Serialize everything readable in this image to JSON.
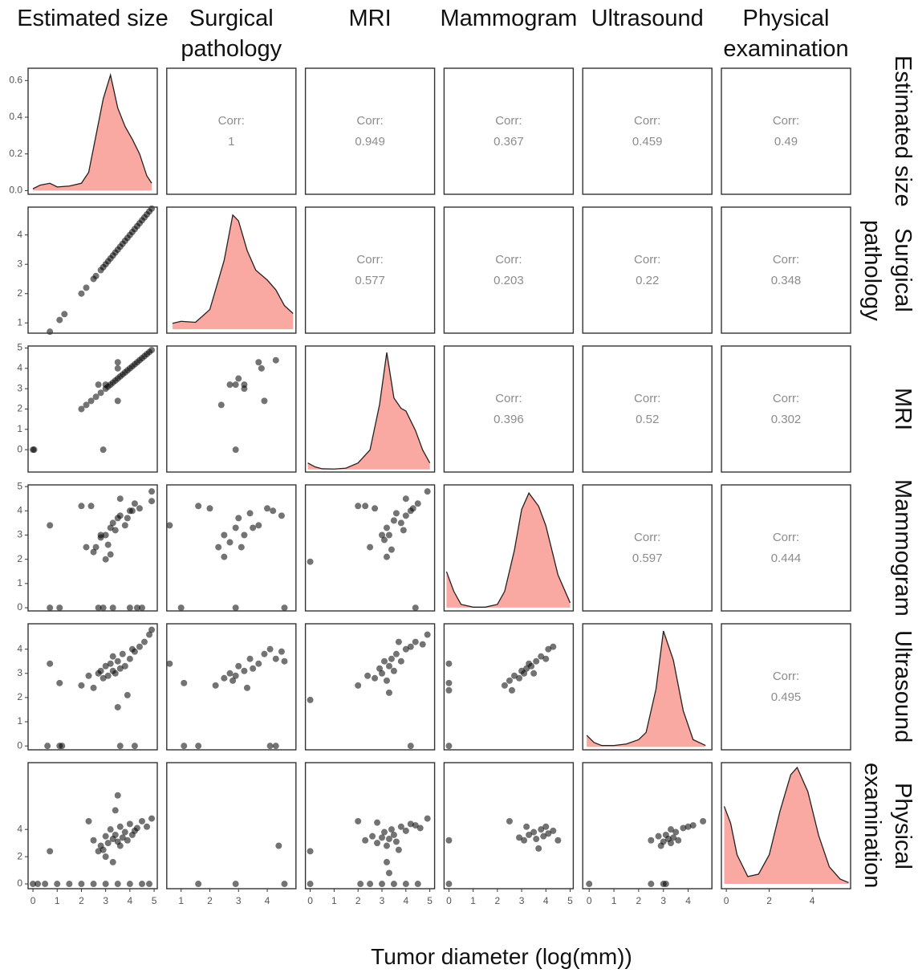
{
  "variables": [
    "Estimated size",
    "Surgical pathology",
    "MRI",
    "Mammogram",
    "Ultrasound",
    "Physical examination"
  ],
  "x_label": "Tumor diameter (log(mm))",
  "chart_data": [
    {
      "type": "density",
      "color": "#f9a8a2",
      "x": [
        0,
        0.3,
        0.7,
        1.0,
        1.5,
        2.0,
        2.3,
        2.6,
        2.9,
        3.2,
        3.5,
        3.8,
        4.1,
        4.4,
        4.7,
        4.9
      ],
      "y": [
        0.01,
        0.03,
        0.04,
        0.02,
        0.025,
        0.04,
        0.1,
        0.3,
        0.5,
        0.63,
        0.45,
        0.35,
        0.28,
        0.2,
        0.08,
        0.04
      ],
      "xlim": [
        -0.2,
        5.13
      ],
      "ylim": [
        -0.02,
        0.667
      ],
      "yticks": [
        {
          "value": 0,
          "label": "0.0"
        },
        0.2,
        0.4,
        0.6
      ]
    },
    {
      "type": "corr",
      "label": "Corr:",
      "value": 1
    },
    {
      "type": "corr",
      "label": "Corr:",
      "value": 0.949
    },
    {
      "type": "corr",
      "label": "Corr:",
      "value": 0.367
    },
    {
      "type": "corr",
      "label": "Corr:",
      "value": 0.459
    },
    {
      "type": "corr",
      "label": "Corr:",
      "value": 0.49
    },
    {
      "type": "scatter",
      "color": "#000000",
      "x": [
        0.7,
        1.1,
        1.3,
        2.0,
        2.2,
        2.5,
        2.6,
        2.8,
        2.9,
        3.0,
        3.1,
        3.2,
        3.3,
        3.4,
        3.5,
        3.6,
        3.7,
        3.8,
        3.9,
        4.0,
        4.1,
        4.2,
        4.3,
        4.4,
        4.5,
        4.6,
        4.7,
        4.8,
        4.9
      ],
      "y": [
        0.7,
        1.1,
        1.3,
        2.0,
        2.2,
        2.5,
        2.6,
        2.8,
        2.9,
        3.0,
        3.1,
        3.2,
        3.3,
        3.4,
        3.5,
        3.6,
        3.7,
        3.8,
        3.9,
        4.0,
        4.1,
        4.2,
        4.3,
        4.4,
        4.5,
        4.6,
        4.7,
        4.8,
        4.9
      ],
      "xlim": [
        -0.2,
        5.13
      ],
      "ylim": [
        0.65,
        4.95
      ],
      "yticks": [
        1,
        2,
        3,
        4
      ]
    },
    {
      "type": "density",
      "color": "#f9a8a2",
      "x": [
        0.7,
        1.0,
        1.5,
        2.0,
        2.5,
        2.8,
        3.0,
        3.3,
        3.6,
        4.0,
        4.3,
        4.6,
        4.9
      ],
      "y": [
        0.03,
        0.04,
        0.035,
        0.1,
        0.35,
        0.58,
        0.55,
        0.4,
        0.3,
        0.25,
        0.2,
        0.12,
        0.08
      ],
      "xlim": [
        0.5,
        5.0
      ],
      "ylim": [
        -0.02,
        0.62
      ]
    },
    {
      "type": "corr",
      "label": "Corr:",
      "value": 0.577
    },
    {
      "type": "corr",
      "label": "Corr:",
      "value": 0.203
    },
    {
      "type": "corr",
      "label": "Corr:",
      "value": 0.22
    },
    {
      "type": "corr",
      "label": "Corr:",
      "value": 0.348
    },
    {
      "type": "scatter",
      "color": "#000000",
      "x": [
        0,
        0.05,
        2.9,
        2.0,
        2.2,
        2.4,
        2.6,
        2.8,
        3.0,
        3.1,
        3.2,
        3.3,
        3.4,
        3.5,
        3.6,
        3.7,
        3.8,
        3.9,
        4.0,
        4.1,
        4.2,
        4.3,
        4.4,
        4.5,
        4.6,
        4.7,
        4.8,
        4.9,
        2.7,
        3.0,
        3.5,
        3.5,
        3.5
      ],
      "y": [
        0,
        0,
        0,
        2.0,
        2.2,
        2.4,
        2.6,
        2.8,
        3.0,
        3.1,
        3.2,
        3.3,
        3.4,
        3.5,
        3.6,
        3.7,
        3.8,
        3.9,
        4.0,
        4.1,
        4.2,
        4.3,
        4.4,
        4.5,
        4.6,
        4.7,
        4.8,
        4.9,
        3.2,
        3.2,
        4.3,
        4.0,
        2.4
      ],
      "xlim": [
        -0.2,
        5.13
      ],
      "ylim": [
        -1.1,
        5.1
      ],
      "yticks": [
        0,
        1,
        2,
        3,
        4,
        5
      ]
    },
    {
      "type": "scatter",
      "color": "#000000",
      "x": [
        2.9,
        2.4,
        2.7,
        2.9,
        3.2,
        3.0,
        3.2,
        3.7,
        3.8,
        4.3,
        3.9
      ],
      "y": [
        0,
        2.2,
        3.2,
        3.2,
        3.2,
        3.5,
        3.0,
        4.3,
        4.0,
        4.4,
        2.4
      ],
      "xlim": [
        0.5,
        5.0
      ],
      "ylim": [
        -1.1,
        5.1
      ]
    },
    {
      "type": "density",
      "color": "#f9a8a2",
      "x": [
        -0.1,
        0.2,
        0.5,
        1.0,
        1.5,
        2.0,
        2.5,
        2.9,
        3.2,
        3.5,
        3.8,
        4.0,
        4.4,
        4.7,
        5.0
      ],
      "y": [
        0.05,
        0.02,
        0.005,
        0.003,
        0.01,
        0.05,
        0.15,
        0.5,
        0.9,
        0.55,
        0.47,
        0.45,
        0.3,
        0.15,
        0.05
      ],
      "xlim": [
        -0.2,
        5.2
      ],
      "ylim": [
        -0.02,
        0.95
      ]
    },
    {
      "type": "corr",
      "label": "Corr:",
      "value": 0.396
    },
    {
      "type": "corr",
      "label": "Corr:",
      "value": 0.52
    },
    {
      "type": "corr",
      "label": "Corr:",
      "value": 0.302
    },
    {
      "type": "scatter",
      "color": "#000000",
      "x": [
        0.7,
        0.7,
        1.1,
        2.7,
        2.9,
        3.3,
        4.0,
        4.3,
        4.5,
        2.0,
        2.4,
        2.6,
        2.5,
        2.8,
        3.0,
        3.1,
        3.2,
        3.3,
        3.4,
        3.5,
        3.6,
        3.8,
        4.0,
        4.2,
        4.4,
        4.9,
        4.9,
        2.2,
        3.0,
        3.6,
        2.8,
        3.2,
        3.9,
        4.1
      ],
      "y": [
        3.4,
        0,
        0,
        0,
        0,
        0,
        0,
        0,
        0,
        4.2,
        4.2,
        2.5,
        2.3,
        2.9,
        3.0,
        2.6,
        3.3,
        3.5,
        3.2,
        3.7,
        3.8,
        3.4,
        4.0,
        4.3,
        4.1,
        4.8,
        4.4,
        2.5,
        2.0,
        4.5,
        3.0,
        2.2,
        3.7,
        4.0
      ],
      "xlim": [
        -0.2,
        5.13
      ],
      "ylim": [
        -0.13,
        5.07
      ],
      "yticks": [
        0,
        1,
        2,
        3,
        4,
        5
      ]
    },
    {
      "type": "scatter",
      "color": "#000000",
      "x": [
        0.6,
        1.0,
        1.6,
        2.0,
        2.3,
        2.5,
        2.7,
        2.9,
        3.0,
        3.1,
        3.2,
        3.4,
        3.7,
        4.0,
        4.2,
        4.5,
        2.9,
        3.5,
        2.5,
        4.6
      ],
      "y": [
        3.4,
        0,
        4.2,
        4.1,
        2.5,
        3.0,
        2.7,
        3.3,
        3.7,
        2.5,
        3.0,
        3.9,
        3.4,
        4.1,
        4.0,
        3.8,
        0,
        3.3,
        2.1,
        0
      ],
      "xlim": [
        0.5,
        5.0
      ],
      "ylim": [
        -0.13,
        5.07
      ]
    },
    {
      "type": "scatter",
      "color": "#000000",
      "x": [
        0,
        2.0,
        2.5,
        2.7,
        3.0,
        3.1,
        3.2,
        3.3,
        3.5,
        3.6,
        3.8,
        4.0,
        4.2,
        4.3,
        4.5,
        4.9,
        4.0,
        3.4,
        3.2,
        3.9,
        2.3,
        4.4
      ],
      "y": [
        1.9,
        4.2,
        2.5,
        4.1,
        3.0,
        2.8,
        3.3,
        3.0,
        3.6,
        3.9,
        3.5,
        3.8,
        4.0,
        4.1,
        4.3,
        4.8,
        4.5,
        2.4,
        2.1,
        3.2,
        4.2,
        0
      ],
      "xlim": [
        -0.2,
        5.2
      ],
      "ylim": [
        -0.13,
        5.07
      ]
    },
    {
      "type": "density",
      "color": "#f9a8a2",
      "x": [
        -0.1,
        0.2,
        0.5,
        1.0,
        1.5,
        2.0,
        2.3,
        2.7,
        3.0,
        3.3,
        3.7,
        4.0,
        4.5,
        5.0
      ],
      "y": [
        0.22,
        0.1,
        0.02,
        0.003,
        0.003,
        0.02,
        0.1,
        0.35,
        0.6,
        0.7,
        0.62,
        0.5,
        0.2,
        0.03
      ],
      "xlim": [
        -0.2,
        5.13
      ],
      "ylim": [
        -0.02,
        0.75
      ]
    },
    {
      "type": "corr",
      "label": "Corr:",
      "value": 0.597
    },
    {
      "type": "corr",
      "label": "Corr:",
      "value": 0.444
    },
    {
      "type": "scatter",
      "color": "#000000",
      "x": [
        0.7,
        1.1,
        2.0,
        2.3,
        2.5,
        2.7,
        2.9,
        3.0,
        3.1,
        3.2,
        3.3,
        3.4,
        3.5,
        3.6,
        3.7,
        3.8,
        4.0,
        4.1,
        4.2,
        4.4,
        4.6,
        4.8,
        4.9,
        0.6,
        1.1,
        1.2,
        3.6,
        4.2,
        3.9,
        3.5,
        2.8,
        3.3
      ],
      "y": [
        3.4,
        2.6,
        2.5,
        2.9,
        2.4,
        3.0,
        2.8,
        3.3,
        2.9,
        3.4,
        3.1,
        3.0,
        3.5,
        3.2,
        3.8,
        3.3,
        3.6,
        4.0,
        3.9,
        4.1,
        4.3,
        4.6,
        4.8,
        0,
        0,
        0,
        0,
        0,
        2.1,
        1.6,
        3.1,
        3.7
      ],
      "xlim": [
        -0.2,
        5.13
      ],
      "ylim": [
        -0.16,
        5.05
      ],
      "yticks": [
        0,
        1,
        2,
        3,
        4
      ]
    },
    {
      "type": "scatter",
      "color": "#000000",
      "x": [
        0.6,
        1.1,
        1.6,
        2.2,
        2.5,
        2.7,
        2.9,
        3.0,
        3.2,
        3.4,
        3.5,
        3.7,
        3.9,
        4.1,
        4.3,
        4.5,
        4.6,
        2.8,
        3.3,
        1.1,
        4.1,
        4.3
      ],
      "y": [
        3.4,
        2.6,
        0,
        2.5,
        2.8,
        3.0,
        2.9,
        3.3,
        3.1,
        3.6,
        3.2,
        3.4,
        3.8,
        4.0,
        3.6,
        3.9,
        3.5,
        2.7,
        2.4,
        0,
        0,
        0
      ],
      "xlim": [
        0.5,
        5.0
      ],
      "ylim": [
        -0.16,
        5.05
      ]
    },
    {
      "type": "scatter",
      "color": "#000000",
      "x": [
        0,
        2.0,
        2.4,
        2.7,
        2.9,
        3.0,
        3.1,
        3.2,
        3.3,
        3.4,
        3.5,
        3.6,
        3.8,
        4.0,
        4.2,
        4.4,
        4.7,
        4.9,
        3.3,
        3.7,
        4.2
      ],
      "y": [
        1.9,
        2.5,
        2.9,
        2.8,
        3.2,
        3.0,
        3.5,
        2.7,
        3.3,
        3.6,
        3.1,
        3.8,
        3.5,
        4.0,
        4.1,
        4.3,
        4.2,
        4.6,
        2.2,
        4.3,
        0
      ],
      "xlim": [
        -0.2,
        5.2
      ],
      "ylim": [
        -0.16,
        5.05
      ]
    },
    {
      "type": "scatter",
      "color": "#000000",
      "x": [
        0,
        0,
        0,
        2.3,
        2.5,
        2.7,
        2.9,
        3.0,
        3.1,
        3.2,
        3.3,
        3.4,
        3.6,
        3.8,
        4.0,
        4.1,
        4.3,
        2.6,
        3.5,
        0
      ],
      "y": [
        3.4,
        2.6,
        2.3,
        2.5,
        2.7,
        2.9,
        2.8,
        3.1,
        3.0,
        3.2,
        3.4,
        3.3,
        3.5,
        3.7,
        3.6,
        4.0,
        4.1,
        2.3,
        3.0,
        0
      ],
      "xlim": [
        -0.2,
        5.13
      ],
      "ylim": [
        -0.16,
        5.05
      ]
    },
    {
      "type": "density",
      "color": "#f9a8a2",
      "x": [
        -0.1,
        0.2,
        0.5,
        1.0,
        1.5,
        2.0,
        2.3,
        2.7,
        3.0,
        3.4,
        3.8,
        4.2,
        4.7
      ],
      "y": [
        0.08,
        0.03,
        0.01,
        0.01,
        0.02,
        0.05,
        0.1,
        0.4,
        0.8,
        0.6,
        0.25,
        0.05,
        0.01
      ],
      "xlim": [
        -0.26,
        4.96
      ],
      "ylim": [
        -0.02,
        0.85
      ]
    },
    {
      "type": "corr",
      "label": "Corr:",
      "value": 0.495
    },
    {
      "type": "scatter",
      "color": "#000000",
      "x": [
        0.7,
        2.3,
        2.5,
        2.8,
        3.0,
        3.1,
        3.2,
        3.3,
        3.4,
        3.5,
        3.6,
        3.7,
        3.8,
        3.9,
        4.0,
        4.1,
        4.2,
        4.3,
        4.5,
        4.7,
        4.9,
        3.3,
        3.0,
        2.9,
        2.7,
        3.5,
        0,
        0.2,
        0.5,
        1.0,
        1.5,
        2.0,
        2.5,
        3.0,
        3.5,
        4.0,
        4.5,
        4.8,
        3.4,
        3.6
      ],
      "y": [
        2.4,
        4.6,
        3.2,
        2.8,
        3.5,
        3.0,
        4.0,
        3.3,
        3.6,
        3.1,
        4.2,
        3.4,
        3.8,
        3.2,
        4.4,
        3.6,
        3.9,
        4.1,
        4.6,
        4.2,
        4.8,
        1.6,
        2.0,
        2.5,
        2.4,
        6.5,
        0,
        0,
        0,
        0,
        0,
        0,
        0,
        0,
        0,
        0,
        0,
        0,
        5.4,
        2.8
      ],
      "xlim": [
        -0.2,
        5.13
      ],
      "ylim": [
        -0.35,
        8.9
      ],
      "xticks": [
        0,
        1,
        2,
        3,
        4,
        5
      ],
      "yticks": [
        0,
        2,
        4
      ]
    },
    {
      "type": "scatter",
      "color": "#000000",
      "x": [
        1.6,
        2.9,
        4.4,
        4.6
      ],
      "y": [
        0,
        0,
        2.8,
        0
      ],
      "xlim": [
        0.5,
        5.0
      ],
      "ylim": [
        -0.35,
        8.9
      ],
      "xticks": [
        1,
        2,
        3,
        4
      ]
    },
    {
      "type": "scatter",
      "color": "#000000",
      "x": [
        0,
        0,
        2.0,
        2.3,
        2.6,
        2.8,
        3.0,
        3.1,
        3.2,
        3.3,
        3.4,
        3.5,
        3.6,
        3.8,
        4.0,
        4.2,
        4.4,
        4.6,
        4.9,
        3.2,
        3.3,
        2.1,
        2.5,
        3.0,
        3.5,
        4.0,
        4.5,
        2.8,
        3.7
      ],
      "y": [
        2.4,
        0,
        4.6,
        3.2,
        3.5,
        3.0,
        3.4,
        3.8,
        2.8,
        3.3,
        4.0,
        3.6,
        3.1,
        4.2,
        3.9,
        4.4,
        4.3,
        4.1,
        4.8,
        1.6,
        0.8,
        0,
        0,
        0,
        0,
        0,
        0,
        4.5,
        2.5
      ],
      "xlim": [
        -0.2,
        5.2
      ],
      "ylim": [
        -0.35,
        8.9
      ],
      "xticks": [
        0,
        1,
        2,
        3,
        4,
        5
      ]
    },
    {
      "type": "scatter",
      "color": "#000000",
      "x": [
        0,
        0,
        2.5,
        2.9,
        3.1,
        3.3,
        3.5,
        3.6,
        3.8,
        3.9,
        4.0,
        4.1,
        4.3,
        4.5,
        3.7,
        3.2
      ],
      "y": [
        3.2,
        0,
        4.6,
        3.4,
        3.2,
        3.6,
        3.8,
        3.3,
        4.0,
        3.5,
        4.2,
        3.7,
        3.9,
        3.2,
        2.6,
        4.2
      ],
      "xlim": [
        -0.2,
        5.13
      ],
      "ylim": [
        -0.35,
        8.9
      ],
      "xticks": [
        0,
        1,
        2,
        3,
        4,
        5
      ]
    },
    {
      "type": "scatter",
      "color": "#000000",
      "x": [
        0,
        2.5,
        2.8,
        3.0,
        3.1,
        3.2,
        3.3,
        3.4,
        3.5,
        3.6,
        3.8,
        4.0,
        4.2,
        4.6,
        2.9,
        3.3,
        2.5,
        3.0,
        3.1
      ],
      "y": [
        0,
        3.2,
        3.5,
        3.1,
        3.6,
        3.3,
        4.0,
        3.4,
        3.8,
        3.2,
        4.1,
        4.2,
        4.3,
        4.6,
        2.8,
        3.0,
        0,
        0,
        0
      ],
      "xlim": [
        -0.26,
        4.96
      ],
      "ylim": [
        -0.35,
        8.9
      ],
      "xticks": [
        0,
        1,
        2,
        3,
        4
      ]
    },
    {
      "type": "density",
      "color": "#f9a8a2",
      "x": [
        -0.1,
        0.2,
        0.5,
        1.0,
        1.5,
        2.0,
        2.5,
        3.0,
        3.3,
        3.8,
        4.3,
        4.8,
        5.3,
        5.7
      ],
      "y": [
        0.32,
        0.25,
        0.12,
        0.03,
        0.04,
        0.12,
        0.3,
        0.45,
        0.48,
        0.38,
        0.2,
        0.07,
        0.02,
        0.005
      ],
      "xlim": [
        -0.23,
        5.79
      ],
      "ylim": [
        -0.02,
        0.5
      ],
      "xticks": [
        0,
        2,
        4
      ]
    }
  ]
}
